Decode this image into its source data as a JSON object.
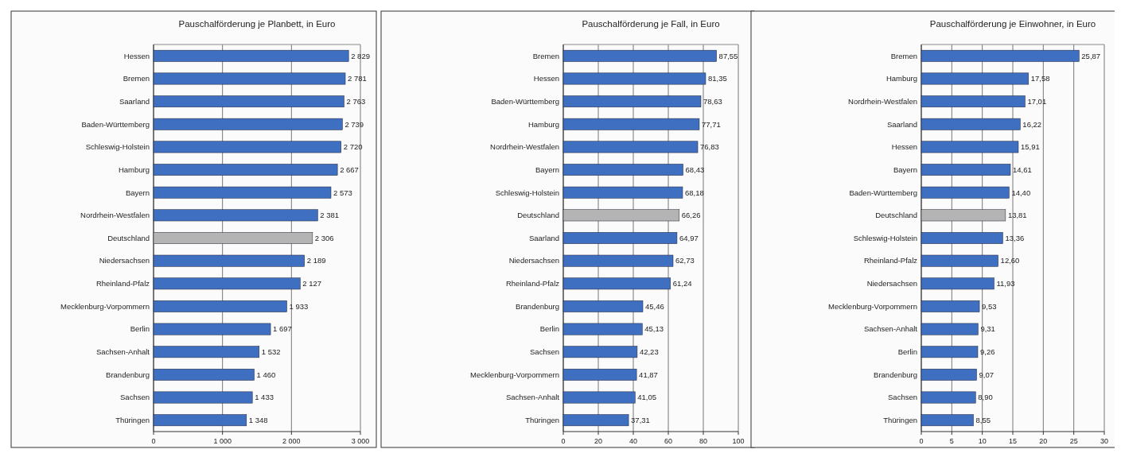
{
  "chart_data": [
    {
      "type": "bar",
      "orientation": "horizontal",
      "title": "Pauschalförderung je Planbett, in Euro",
      "grid": "x",
      "categories": [
        "Hessen",
        "Bremen",
        "Saarland",
        "Baden-Württemberg",
        "Schleswig-Holstein",
        "Hamburg",
        "Bayern",
        "Nordrhein-Westfalen",
        "Deutschland",
        "Niedersachsen",
        "Rheinland-Pfalz",
        "Mecklenburg-Vorpommern",
        "Berlin",
        "Sachsen-Anhalt",
        "Brandenburg",
        "Sachsen",
        "Thüringen"
      ],
      "values": [
        2829,
        2781,
        2763,
        2739,
        2720,
        2667,
        2573,
        2381,
        2306,
        2189,
        2127,
        1933,
        1697,
        1532,
        1460,
        1433,
        1348
      ],
      "value_labels": [
        "2 829",
        "2 781",
        "2 763",
        "2 739",
        "2 720",
        "2 667",
        "2 573",
        "2 381",
        "2 306",
        "2 189",
        "2 127",
        "1 933",
        "1 697",
        "1 532",
        "1 460",
        "1 433",
        "1 348"
      ],
      "colors": [
        "#3f6fc1",
        "#3f6fc1",
        "#3f6fc1",
        "#3f6fc1",
        "#3f6fc1",
        "#3f6fc1",
        "#3f6fc1",
        "#3f6fc1",
        "#b4b4b4",
        "#3f6fc1",
        "#3f6fc1",
        "#3f6fc1",
        "#3f6fc1",
        "#3f6fc1",
        "#3f6fc1",
        "#3f6fc1",
        "#3f6fc1"
      ],
      "xlim": [
        0,
        3000
      ],
      "xticks": [
        0,
        {
          "value": 1000,
          "label": "1 000"
        },
        {
          "value": 2000,
          "label": "2 000"
        },
        {
          "value": 3000,
          "label": "3 000"
        }
      ]
    },
    {
      "type": "bar",
      "orientation": "horizontal",
      "title": "Pauschalförderung je Fall, in Euro",
      "grid": "x",
      "categories": [
        "Bremen",
        "Hessen",
        "Baden-Württemberg",
        "Hamburg",
        "Nordrhein-Westfalen",
        "Bayern",
        "Schleswig-Holstein",
        "Deutschland",
        "Saarland",
        "Niedersachsen",
        "Rheinland-Pfalz",
        "Brandenburg",
        "Berlin",
        "Sachsen",
        "Mecklenburg-Vorpommern",
        "Sachsen-Anhalt",
        "Thüringen"
      ],
      "values": [
        87.55,
        81.35,
        78.63,
        77.71,
        76.83,
        68.43,
        68.18,
        66.26,
        64.97,
        62.73,
        61.24,
        45.46,
        45.13,
        42.23,
        41.87,
        41.05,
        37.31
      ],
      "value_labels": [
        "87,55",
        "81,35",
        "78,63",
        "77,71",
        "76,83",
        "68,43",
        "68,18",
        "66,26",
        "64,97",
        "62,73",
        "61,24",
        "45,46",
        "45,13",
        "42,23",
        "41,87",
        "41,05",
        "37,31"
      ],
      "colors": [
        "#3f6fc1",
        "#3f6fc1",
        "#3f6fc1",
        "#3f6fc1",
        "#3f6fc1",
        "#3f6fc1",
        "#3f6fc1",
        "#b4b4b4",
        "#3f6fc1",
        "#3f6fc1",
        "#3f6fc1",
        "#3f6fc1",
        "#3f6fc1",
        "#3f6fc1",
        "#3f6fc1",
        "#3f6fc1",
        "#3f6fc1"
      ],
      "xlim": [
        0,
        100
      ],
      "xticks": [
        0,
        20,
        40,
        60,
        80,
        100
      ]
    },
    {
      "type": "bar",
      "orientation": "horizontal",
      "title": "Pauschalförderung je Einwohner, in Euro",
      "grid": "x",
      "categories": [
        "Bremen",
        "Hamburg",
        "Nordrhein-Westfalen",
        "Saarland",
        "Hessen",
        "Bayern",
        "Baden-Württemberg",
        "Deutschland",
        "Schleswig-Holstein",
        "Rheinland-Pfalz",
        "Niedersachsen",
        "Mecklenburg-Vorpommern",
        "Sachsen-Anhalt",
        "Berlin",
        "Brandenburg",
        "Sachsen",
        "Thüringen"
      ],
      "values": [
        25.87,
        17.58,
        17.01,
        16.22,
        15.91,
        14.61,
        14.4,
        13.81,
        13.36,
        12.6,
        11.93,
        9.53,
        9.31,
        9.26,
        9.07,
        8.9,
        8.55
      ],
      "value_labels": [
        "25,87",
        "17,58",
        "17,01",
        "16,22",
        "15,91",
        "14,61",
        "14,40",
        "13,81",
        "13,36",
        "12,60",
        "11,93",
        "9,53",
        "9,31",
        "9,26",
        "9,07",
        "8,90",
        "8,55"
      ],
      "colors": [
        "#3f6fc1",
        "#3f6fc1",
        "#3f6fc1",
        "#3f6fc1",
        "#3f6fc1",
        "#3f6fc1",
        "#3f6fc1",
        "#b4b4b4",
        "#3f6fc1",
        "#3f6fc1",
        "#3f6fc1",
        "#3f6fc1",
        "#3f6fc1",
        "#3f6fc1",
        "#3f6fc1",
        "#3f6fc1",
        "#3f6fc1"
      ],
      "xlim": [
        0,
        30
      ],
      "xticks": [
        0,
        5,
        10,
        15,
        20,
        25,
        30
      ]
    }
  ]
}
